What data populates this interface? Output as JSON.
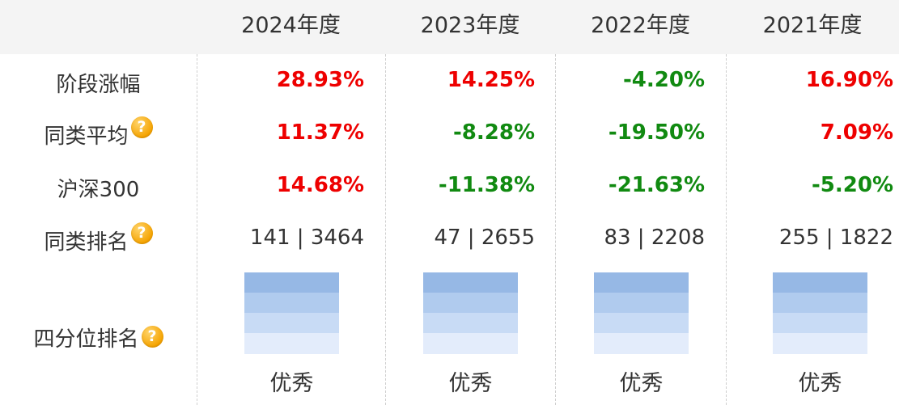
{
  "years": [
    "2024年度",
    "2023年度",
    "2022年度",
    "2021年度"
  ],
  "row_labels": {
    "stage_return": "阶段涨幅",
    "peer_average": "同类平均",
    "csi300": "沪深300",
    "peer_rank": "同类排名",
    "quartile_rank": "四分位排名"
  },
  "help_icon_glyph": "?",
  "stage_return": [
    "28.93%",
    "14.25%",
    "-4.20%",
    "16.90%"
  ],
  "peer_average": [
    "11.37%",
    "-8.28%",
    "-19.50%",
    "7.09%"
  ],
  "csi300": [
    "14.68%",
    "-11.38%",
    "-21.63%",
    "-5.20%"
  ],
  "peer_rank": [
    "141 | 3464",
    "47 | 2655",
    "83 | 2208",
    "255 | 1822"
  ],
  "quartile": [
    "优秀",
    "优秀",
    "优秀",
    "优秀"
  ],
  "colors": {
    "positive": "#ee0000",
    "negative": "#118a11",
    "header_bg": "#f4f4f4",
    "quartile_bands": [
      "#96b8e5",
      "#b0cbee",
      "#c8dbf5",
      "#e3ecfb"
    ],
    "help_icon": "#f5a300"
  }
}
